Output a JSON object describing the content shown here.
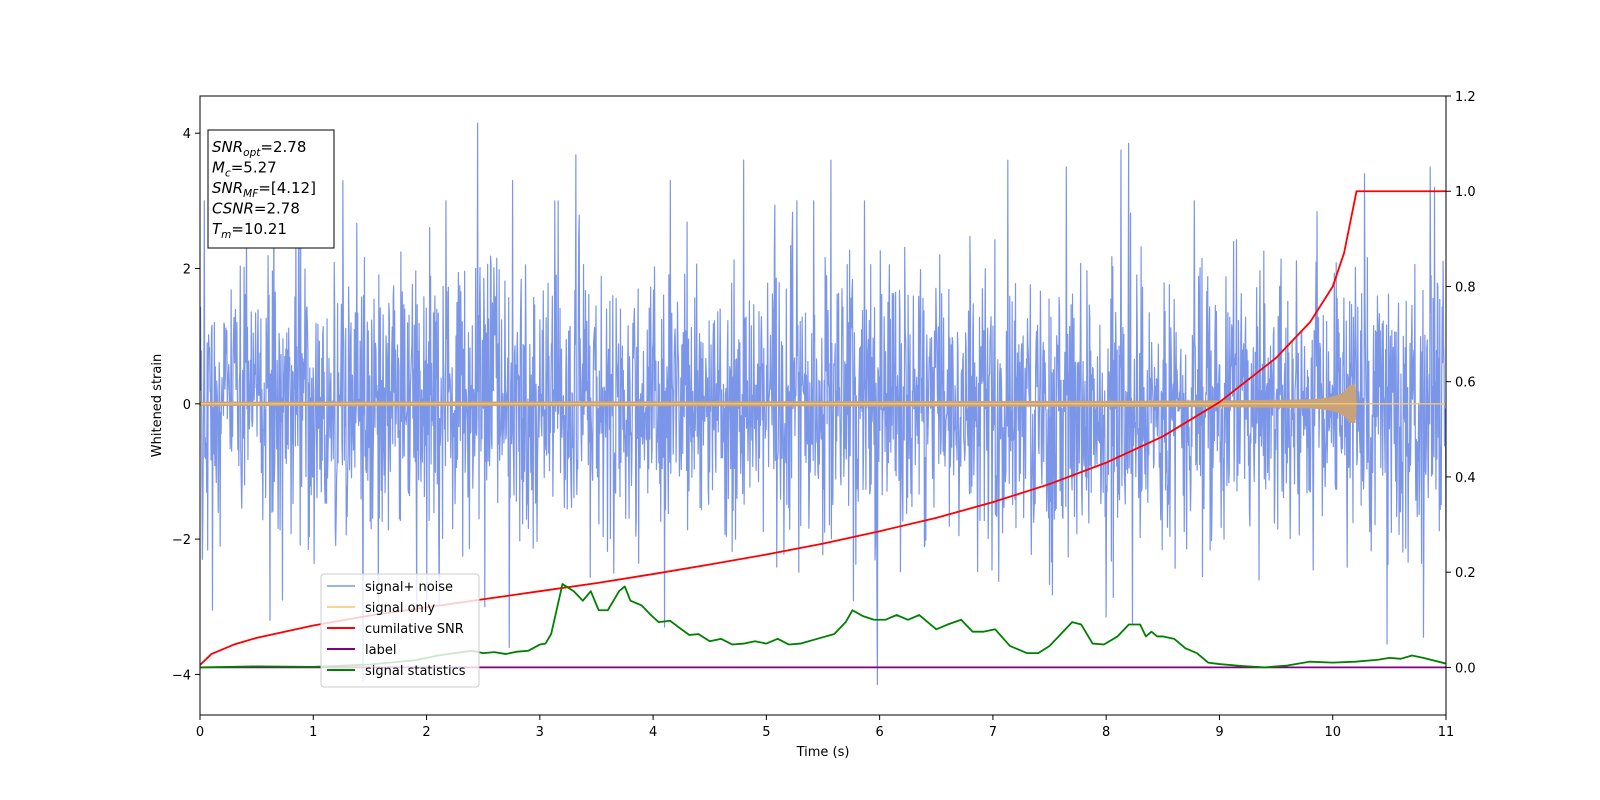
{
  "chart_data": {
    "type": "line",
    "title": "",
    "xlabel": "Time (s)",
    "ylabel": "Whitened strain",
    "y2label": "",
    "xlim": [
      0,
      11
    ],
    "ylim": [
      -4.6,
      4.55
    ],
    "y2lim": [
      -0.1,
      1.2
    ],
    "xticks": [
      0,
      1,
      2,
      3,
      4,
      5,
      6,
      7,
      8,
      9,
      10,
      11
    ],
    "yticks": [
      -4,
      -2,
      0,
      2,
      4
    ],
    "y2ticks": [
      0.0,
      0.2,
      0.4,
      0.6,
      0.8,
      1.0,
      1.2
    ],
    "y2tick_labels": [
      "0.0",
      "0.2",
      "0.4",
      "0.6",
      "0.8",
      "1.0",
      "1.2"
    ],
    "grid": false,
    "legend_placement": "lower-left",
    "annotation": {
      "lines": [
        {
          "sym": "SNR",
          "sub": "opt",
          "text": "=2.78"
        },
        {
          "sym": "M",
          "sub": "c",
          "text": "=5.27"
        },
        {
          "sym": "SNR",
          "sub": "MF",
          "text": "=[4.12]"
        },
        {
          "sym": "CSNR",
          "sub": "",
          "text": "=2.78"
        },
        {
          "sym": "T",
          "sub": "m",
          "text": "=10.21"
        }
      ]
    },
    "series": [
      {
        "name": "signal+ noise",
        "axis": "left",
        "color": "#7b96e8",
        "style": "noise",
        "x_range": [
          0,
          11
        ],
        "envelope": [
          -2.6,
          2.6
        ],
        "peaks": [
          {
            "x": 0.04,
            "y": 3.0
          },
          {
            "x": 0.65,
            "y": 3.2
          },
          {
            "x": 0.87,
            "y": 3.6
          },
          {
            "x": 1.26,
            "y": 3.3
          },
          {
            "x": 2.45,
            "y": 4.15
          },
          {
            "x": 2.76,
            "y": 3.3
          },
          {
            "x": 3.13,
            "y": 3.0
          },
          {
            "x": 3.32,
            "y": 3.68
          },
          {
            "x": 4.15,
            "y": 3.3
          },
          {
            "x": 4.8,
            "y": 3.6
          },
          {
            "x": 5.57,
            "y": 3.6
          },
          {
            "x": 7.13,
            "y": 3.6
          },
          {
            "x": 7.65,
            "y": 3.5
          },
          {
            "x": 8.13,
            "y": 3.75
          },
          {
            "x": 8.2,
            "y": 3.85
          },
          {
            "x": 10.28,
            "y": 3.4
          },
          {
            "x": 10.86,
            "y": 3.5
          },
          {
            "x": 10.9,
            "y": 3.2
          }
        ],
        "troughs": [
          {
            "x": 0.02,
            "y": -2.3
          },
          {
            "x": 0.11,
            "y": -3.05
          },
          {
            "x": 0.62,
            "y": -3.2
          },
          {
            "x": 0.73,
            "y": -2.9
          },
          {
            "x": 1.44,
            "y": -4.1
          },
          {
            "x": 2.0,
            "y": -2.9
          },
          {
            "x": 2.73,
            "y": -3.6
          },
          {
            "x": 4.1,
            "y": -3.3
          },
          {
            "x": 5.98,
            "y": -4.15
          },
          {
            "x": 8.0,
            "y": -3.15
          },
          {
            "x": 8.23,
            "y": -3.25
          },
          {
            "x": 10.48,
            "y": -3.55
          },
          {
            "x": 10.8,
            "y": -3.45
          },
          {
            "x": 11.0,
            "y": -2.0
          }
        ]
      },
      {
        "name": "signal only",
        "axis": "left",
        "color": "#f5c76c",
        "fill_color": "#c8a27a",
        "style": "chirp",
        "x_range": [
          0,
          11
        ],
        "merger_time": 10.21,
        "max_amplitude": 0.28
      },
      {
        "name": "cumilative SNR",
        "axis": "right",
        "color": "#ff0000",
        "style": "line",
        "x": [
          0,
          0.1,
          0.3,
          0.5,
          1,
          1.5,
          2,
          2.5,
          3,
          3.5,
          4,
          4.5,
          5,
          5.5,
          6,
          6.5,
          7,
          7.5,
          8,
          8.5,
          9,
          9.5,
          9.8,
          10,
          10.1,
          10.21,
          11
        ],
        "y": [
          0.005,
          0.028,
          0.048,
          0.062,
          0.088,
          0.109,
          0.126,
          0.143,
          0.16,
          0.177,
          0.196,
          0.216,
          0.237,
          0.26,
          0.286,
          0.314,
          0.347,
          0.385,
          0.43,
          0.485,
          0.557,
          0.65,
          0.725,
          0.8,
          0.87,
          1.0,
          1.0
        ]
      },
      {
        "name": "label",
        "axis": "right",
        "color": "#800080",
        "style": "line",
        "x": [
          0,
          11
        ],
        "y": [
          0.0,
          0.0
        ]
      },
      {
        "name": "signal statistics",
        "axis": "right",
        "color": "#008000",
        "style": "line",
        "x": [
          0,
          0.5,
          1.0,
          1.5,
          1.9,
          2.1,
          2.25,
          2.4,
          2.5,
          2.6,
          2.7,
          2.8,
          2.9,
          3.0,
          3.05,
          3.1,
          3.2,
          3.3,
          3.38,
          3.45,
          3.52,
          3.6,
          3.7,
          3.75,
          3.8,
          3.9,
          3.98,
          4.05,
          4.15,
          4.25,
          4.32,
          4.4,
          4.5,
          4.6,
          4.7,
          4.8,
          4.9,
          5.0,
          5.1,
          5.2,
          5.3,
          5.45,
          5.6,
          5.7,
          5.76,
          5.85,
          5.95,
          6.05,
          6.15,
          6.25,
          6.35,
          6.5,
          6.6,
          6.72,
          6.82,
          6.92,
          7.02,
          7.15,
          7.3,
          7.4,
          7.5,
          7.6,
          7.7,
          7.78,
          7.88,
          7.98,
          8.1,
          8.2,
          8.3,
          8.35,
          8.4,
          8.45,
          8.5,
          8.6,
          8.7,
          8.8,
          8.9,
          9.0,
          9.2,
          9.4,
          9.6,
          9.8,
          10.0,
          10.2,
          10.4,
          10.5,
          10.6,
          10.7,
          10.8,
          11.0
        ],
        "y": [
          0.0,
          0.002,
          0.001,
          0.006,
          0.015,
          0.025,
          0.03,
          0.035,
          0.03,
          0.032,
          0.028,
          0.033,
          0.035,
          0.048,
          0.05,
          0.07,
          0.175,
          0.16,
          0.14,
          0.16,
          0.12,
          0.12,
          0.16,
          0.17,
          0.14,
          0.13,
          0.11,
          0.095,
          0.098,
          0.08,
          0.068,
          0.07,
          0.055,
          0.06,
          0.048,
          0.05,
          0.055,
          0.05,
          0.06,
          0.048,
          0.05,
          0.06,
          0.07,
          0.095,
          0.12,
          0.108,
          0.1,
          0.1,
          0.11,
          0.1,
          0.11,
          0.08,
          0.09,
          0.1,
          0.075,
          0.075,
          0.08,
          0.045,
          0.03,
          0.03,
          0.045,
          0.07,
          0.095,
          0.09,
          0.05,
          0.048,
          0.065,
          0.09,
          0.09,
          0.065,
          0.075,
          0.065,
          0.065,
          0.06,
          0.04,
          0.03,
          0.01,
          0.007,
          0.003,
          0.0,
          0.004,
          0.012,
          0.01,
          0.012,
          0.016,
          0.02,
          0.018,
          0.025,
          0.02,
          0.008
        ]
      }
    ]
  }
}
